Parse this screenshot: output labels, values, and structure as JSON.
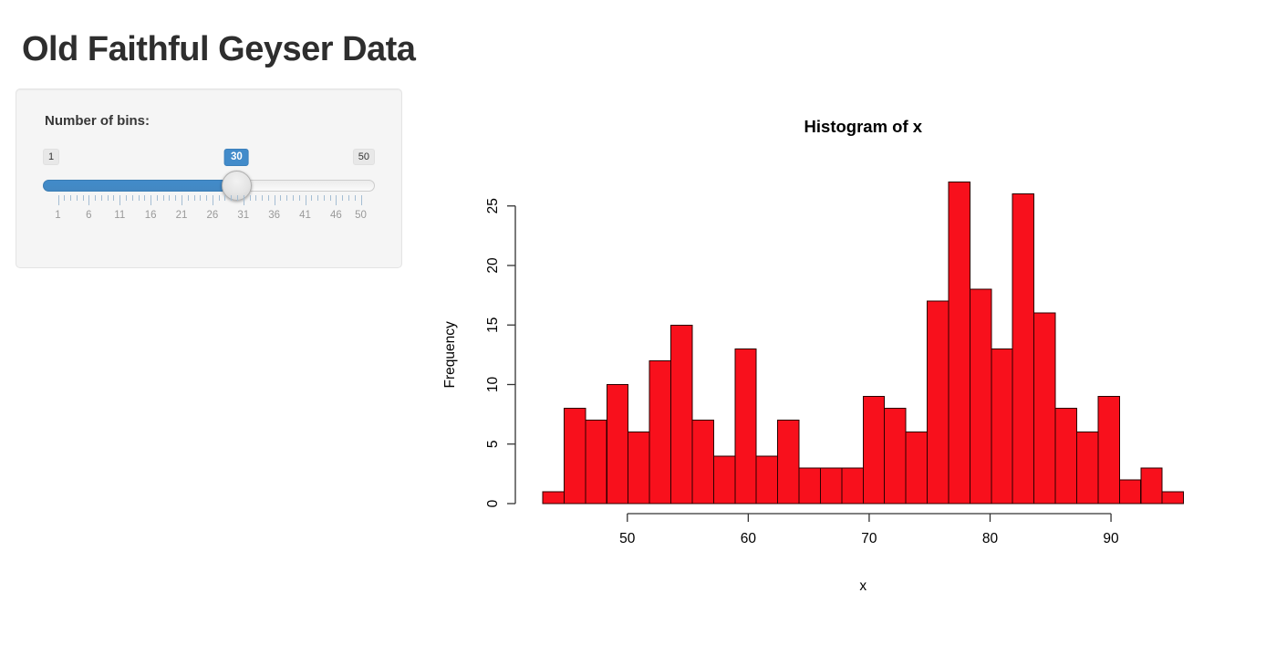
{
  "title": "Old Faithful Geyser Data",
  "colors": {
    "accent_blue": "#428bca",
    "bar_fill": "#f8101c",
    "bar_border": "#2b0000",
    "panel_bg": "#f5f5f5"
  },
  "sidebar": {
    "slider": {
      "label": "Number of bins:",
      "min": 1,
      "max": 50,
      "value": 30,
      "min_label": "1",
      "max_label": "50",
      "value_label": "30",
      "grid_labels": [
        1,
        6,
        11,
        16,
        21,
        26,
        31,
        36,
        41,
        46,
        50
      ]
    }
  },
  "chart_data": {
    "type": "bar",
    "subtype": "histogram",
    "title": "Histogram of x",
    "xlabel": "x",
    "ylabel": "Frequency",
    "bin_start": 43,
    "bin_end": 96,
    "bin_count": 30,
    "counts": [
      1,
      8,
      7,
      10,
      6,
      12,
      15,
      7,
      4,
      13,
      4,
      7,
      3,
      3,
      3,
      9,
      8,
      6,
      17,
      27,
      18,
      13,
      26,
      16,
      8,
      6,
      9,
      2,
      3,
      1
    ],
    "x_ticks": [
      50,
      60,
      70,
      80,
      90
    ],
    "y_ticks": [
      0,
      5,
      10,
      15,
      20,
      25
    ],
    "xlim": [
      41,
      98
    ],
    "ylim": [
      0,
      27
    ],
    "grid": false,
    "legend": false,
    "bar_fill": "#f8101c",
    "bar_border": "#2b0000"
  }
}
